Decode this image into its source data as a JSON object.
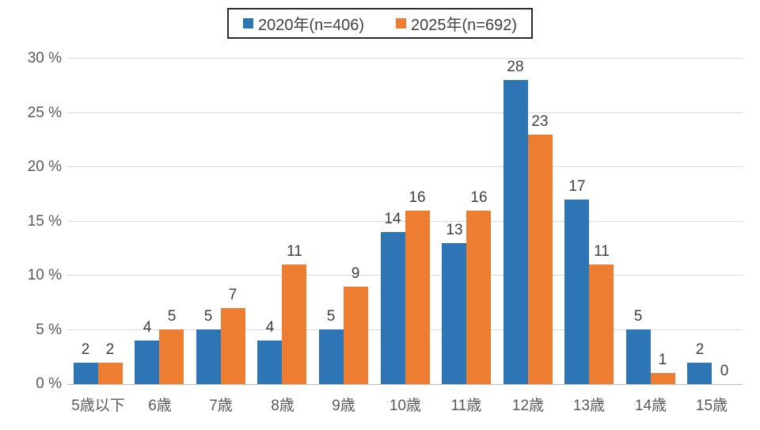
{
  "chart_data": {
    "type": "bar",
    "categories": [
      "5歳以下",
      "6歳",
      "7歳",
      "8歳",
      "9歳",
      "10歳",
      "11歳",
      "12歳",
      "13歳",
      "14歳",
      "15歳"
    ],
    "series": [
      {
        "name": "2020年(n=406)",
        "color": "#2E75B6",
        "values": [
          2,
          4,
          5,
          4,
          5,
          14,
          13,
          28,
          17,
          5,
          2
        ]
      },
      {
        "name": "2025年(n=692)",
        "color": "#ED7D31",
        "values": [
          2,
          5,
          7,
          11,
          9,
          16,
          16,
          23,
          11,
          1,
          0
        ]
      }
    ],
    "title": "",
    "xlabel": "",
    "ylabel": "%",
    "ylim": [
      0,
      30
    ],
    "ytick_step": 5,
    "ytick_labels": [
      "0 %",
      "5 %",
      "10 %",
      "15 %",
      "20 %",
      "25 %",
      "30 %"
    ],
    "grid": true,
    "value_labels": true,
    "legend_position": "top-center"
  },
  "colors": {
    "series_blue": "#2E75B6",
    "series_orange": "#ED7D31",
    "gridline": "#D9D9D9",
    "axis_line": "#BFBFBF",
    "tick_text": "#595959",
    "value_text": "#404040",
    "legend_border": "#2B2B2B",
    "background": "#FFFFFF"
  }
}
